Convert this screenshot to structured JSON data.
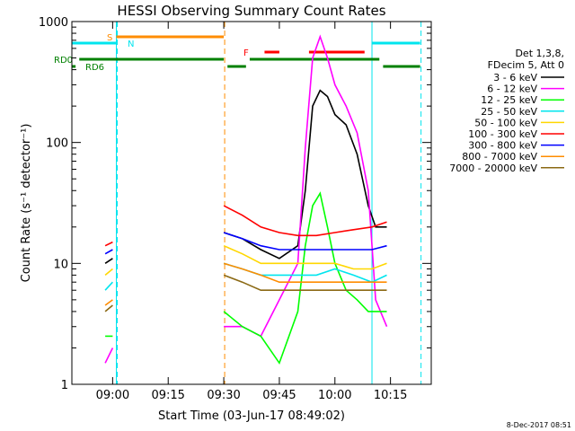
{
  "chart_data": {
    "type": "line",
    "title": "HESSI Observing Summary Count Rates",
    "xlabel": "Start Time (03-Jun-17 08:49:02)",
    "ylabel": "Count Rate (s⁻¹ detector⁻¹)",
    "yscale": "log",
    "ylim": [
      1,
      1000
    ],
    "xlim": [
      "08:49",
      "10:26"
    ],
    "x_ticks": [
      "09:00",
      "09:15",
      "09:30",
      "09:45",
      "10:00",
      "10:15"
    ],
    "y_ticks": [
      "1",
      "10",
      "100",
      "1000"
    ],
    "footer": "8-Dec-2017 08:51",
    "legend": {
      "header": [
        "Det 1,3,8,",
        "FDecim 5, Att 0"
      ],
      "placement": "right"
    },
    "flags": [
      {
        "label": "S",
        "color": "#ff8c00",
        "start": "09:01",
        "end": "09:30"
      },
      {
        "label": "N",
        "color": "#00e5ee",
        "segments": [
          [
            "08:49",
            "09:01"
          ],
          [
            "10:10",
            "10:23"
          ]
        ]
      },
      {
        "label": "RD0",
        "color": "#008000",
        "segments": [
          [
            "08:51",
            "09:30"
          ],
          [
            "09:37",
            "10:12"
          ]
        ]
      },
      {
        "label": "RD6",
        "color": "#008000",
        "segments": [
          [
            "08:49",
            "08:50"
          ],
          [
            "09:31",
            "09:36"
          ],
          [
            "10:13",
            "10:23"
          ]
        ]
      },
      {
        "label": "F",
        "color": "#ff0000",
        "segments": [
          [
            "09:41",
            "09:45"
          ],
          [
            "09:53",
            "10:08"
          ]
        ]
      }
    ],
    "vlines_solid": [
      "08:49",
      "09:01",
      "10:10"
    ],
    "vlines_dashed": [
      "09:01",
      "09:30",
      "10:23"
    ],
    "series": [
      {
        "name": "3 - 6 keV",
        "color": "#000000",
        "x": [
          "08:58",
          "09:00",
          "09:30",
          "09:35",
          "09:40",
          "09:45",
          "09:50",
          "09:52",
          "09:54",
          "09:56",
          "09:58",
          "10:00",
          "10:03",
          "10:06",
          "10:09",
          "10:11",
          "10:14"
        ],
        "values": [
          10,
          11,
          18,
          16,
          13,
          11,
          14,
          40,
          200,
          270,
          240,
          170,
          140,
          80,
          30,
          20,
          20
        ]
      },
      {
        "name": "6 - 12 keV",
        "color": "#ff00ff",
        "x": [
          "08:58",
          "09:00",
          "09:30",
          "09:35",
          "09:40",
          "09:45",
          "09:50",
          "09:52",
          "09:54",
          "09:56",
          "09:58",
          "10:00",
          "10:03",
          "10:06",
          "10:09",
          "10:11",
          "10:14"
        ],
        "values": [
          1.5,
          2,
          3,
          3,
          2.5,
          5,
          10,
          90,
          500,
          750,
          500,
          300,
          200,
          120,
          40,
          5,
          3
        ]
      },
      {
        "name": "12 - 25 keV",
        "color": "#00ff00",
        "x": [
          "08:58",
          "09:00",
          "09:30",
          "09:35",
          "09:40",
          "09:45",
          "09:50",
          "09:52",
          "09:54",
          "09:56",
          "09:58",
          "10:00",
          "10:03",
          "10:06",
          "10:09",
          "10:11",
          "10:14"
        ],
        "values": [
          2.5,
          2.5,
          4,
          3,
          2.5,
          1.5,
          4,
          14,
          30,
          38,
          20,
          10,
          6,
          5,
          4,
          4,
          4
        ]
      },
      {
        "name": "25 - 50 keV",
        "color": "#00e5ee",
        "x": [
          "08:58",
          "09:00",
          "09:30",
          "09:35",
          "09:40",
          "09:45",
          "09:50",
          "09:55",
          "10:00",
          "10:05",
          "10:10",
          "10:14"
        ],
        "values": [
          6,
          7,
          10,
          9,
          8,
          8,
          8,
          8,
          9,
          8,
          7,
          8
        ]
      },
      {
        "name": "50 - 100 keV",
        "color": "#ffd700",
        "x": [
          "08:58",
          "09:00",
          "09:30",
          "09:35",
          "09:40",
          "09:45",
          "09:50",
          "09:55",
          "10:00",
          "10:05",
          "10:10",
          "10:14"
        ],
        "values": [
          8,
          9,
          14,
          12,
          10,
          10,
          10,
          10,
          10,
          9,
          9,
          10
        ]
      },
      {
        "name": "100 - 300 keV",
        "color": "#ff0000",
        "x": [
          "08:58",
          "09:00",
          "09:30",
          "09:35",
          "09:40",
          "09:45",
          "09:50",
          "09:55",
          "10:00",
          "10:05",
          "10:10",
          "10:14"
        ],
        "values": [
          14,
          15,
          30,
          25,
          20,
          18,
          17,
          17,
          18,
          19,
          20,
          22
        ]
      },
      {
        "name": "300 - 800 keV",
        "color": "#0000ff",
        "x": [
          "08:58",
          "09:00",
          "09:30",
          "09:35",
          "09:40",
          "09:45",
          "09:50",
          "09:55",
          "10:00",
          "10:05",
          "10:10",
          "10:14"
        ],
        "values": [
          12,
          13,
          18,
          16,
          14,
          13,
          13,
          13,
          13,
          13,
          13,
          14
        ]
      },
      {
        "name": "800 - 7000 keV",
        "color": "#ff8c00",
        "x": [
          "08:58",
          "09:00",
          "09:30",
          "09:35",
          "09:40",
          "09:45",
          "09:50",
          "09:55",
          "10:00",
          "10:05",
          "10:10",
          "10:14"
        ],
        "values": [
          4.5,
          5,
          10,
          9,
          8,
          7,
          7,
          7,
          7,
          7,
          7,
          7
        ]
      },
      {
        "name": "7000 - 20000 keV",
        "color": "#8b6914",
        "x": [
          "08:58",
          "09:00",
          "09:30",
          "09:35",
          "09:40",
          "09:45",
          "09:50",
          "09:55",
          "10:00",
          "10:05",
          "10:10",
          "10:14"
        ],
        "values": [
          4,
          4.5,
          8,
          7,
          6,
          6,
          6,
          6,
          6,
          6,
          6,
          6
        ]
      }
    ]
  }
}
